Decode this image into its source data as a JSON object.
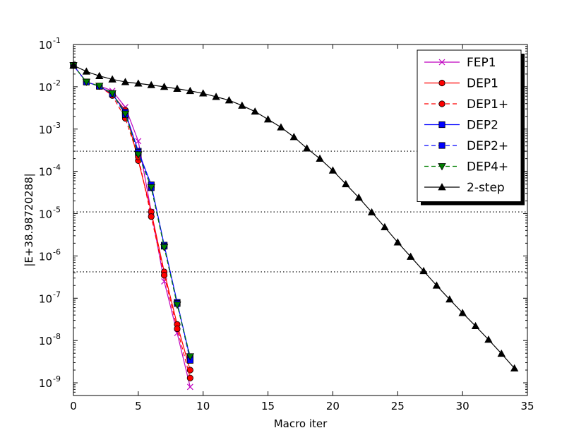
{
  "chart_data": {
    "type": "line",
    "title": "",
    "xlabel": "Macro iter",
    "ylabel": "|E+38.98720288|",
    "yscale": "log",
    "xlim": [
      0,
      35
    ],
    "ylim_exp": [
      -9.3,
      -1
    ],
    "x_ticks": [
      0,
      5,
      10,
      15,
      20,
      25,
      30,
      35
    ],
    "y_ticks": [
      {
        "exp": -1,
        "base": "10",
        "sup": "-1"
      },
      {
        "exp": -2,
        "base": "10",
        "sup": "-2"
      },
      {
        "exp": -3,
        "base": "10",
        "sup": "-3"
      },
      {
        "exp": -4,
        "base": "10",
        "sup": "-4"
      },
      {
        "exp": -5,
        "base": "10",
        "sup": "-5"
      },
      {
        "exp": -6,
        "base": "10",
        "sup": "-6"
      },
      {
        "exp": -7,
        "base": "10",
        "sup": "-7"
      },
      {
        "exp": -8,
        "base": "10",
        "sup": "-8"
      },
      {
        "exp": -9,
        "base": "10",
        "sup": "-9"
      }
    ],
    "reference_lines": [
      0.0003,
      1.1e-05,
      4.2e-07
    ],
    "legend_position": "top-right",
    "series": [
      {
        "name": "FEP1",
        "color": "#bf00bf",
        "dash": "solid",
        "marker": "x",
        "x": [
          0,
          1,
          2,
          3,
          4,
          5,
          6,
          7,
          8,
          9
        ],
        "y": [
          0.032,
          0.013,
          0.0105,
          0.008,
          0.0033,
          0.00052,
          1.1e-05,
          2.5e-07,
          1.5e-08,
          8e-10
        ]
      },
      {
        "name": "DEP1",
        "color": "#ff0000",
        "dash": "solid",
        "marker": "circle",
        "x": [
          0,
          1,
          2,
          3,
          4,
          5,
          6,
          7,
          8,
          9
        ],
        "y": [
          0.032,
          0.013,
          0.0103,
          0.0065,
          0.0028,
          0.00018,
          1.1e-05,
          4.2e-07,
          2.4e-08,
          2e-09
        ]
      },
      {
        "name": "DEP1+",
        "color": "#ff0000",
        "dash": "dashed",
        "marker": "circle",
        "x": [
          0,
          1,
          2,
          3,
          4,
          5,
          6,
          7,
          8,
          9
        ],
        "y": [
          0.032,
          0.013,
          0.0103,
          0.0062,
          0.0018,
          0.00022,
          8.5e-06,
          3.5e-07,
          1.9e-08,
          1.3e-09
        ]
      },
      {
        "name": "DEP2",
        "color": "#0000ff",
        "dash": "solid",
        "marker": "square",
        "x": [
          0,
          1,
          2,
          3,
          4,
          5,
          6,
          7,
          8,
          9
        ],
        "y": [
          0.032,
          0.013,
          0.0103,
          0.0068,
          0.0025,
          0.0003,
          4.8e-05,
          1.8e-06,
          8e-08,
          3.8e-09
        ]
      },
      {
        "name": "DEP2+",
        "color": "#0000ff",
        "dash": "dashed",
        "marker": "square",
        "x": [
          0,
          1,
          2,
          3,
          4,
          5,
          6,
          7,
          8,
          9
        ],
        "y": [
          0.032,
          0.013,
          0.0103,
          0.0068,
          0.0022,
          0.00028,
          4.1e-05,
          1.7e-06,
          7.5e-08,
          3.4e-09
        ]
      },
      {
        "name": "DEP4+",
        "color": "#007f00",
        "dash": "dashed",
        "marker": "triangle-down",
        "x": [
          0,
          1,
          2,
          3,
          4,
          5,
          6,
          7,
          8,
          9
        ],
        "y": [
          0.032,
          0.013,
          0.0105,
          0.007,
          0.0023,
          0.00025,
          4.2e-05,
          1.6e-06,
          7e-08,
          4.2e-09
        ]
      },
      {
        "name": "2-step",
        "color": "#000000",
        "dash": "solid",
        "marker": "triangle-up",
        "x": [
          0,
          1,
          2,
          3,
          4,
          5,
          6,
          7,
          8,
          9,
          10,
          11,
          12,
          13,
          14,
          15,
          16,
          17,
          18,
          19,
          20,
          21,
          22,
          23,
          24,
          25,
          26,
          27,
          28,
          29,
          30,
          31,
          32,
          33,
          34
        ],
        "y": [
          0.032,
          0.023,
          0.018,
          0.015,
          0.013,
          0.012,
          0.011,
          0.01,
          0.009,
          0.008,
          0.007,
          0.0058,
          0.0048,
          0.0036,
          0.0026,
          0.0017,
          0.0011,
          0.00065,
          0.00035,
          0.0002,
          0.000105,
          5e-05,
          2.4e-05,
          1.08e-05,
          4.8e-06,
          2.1e-06,
          9.6e-07,
          4.4e-07,
          2e-07,
          9.4e-08,
          4.5e-08,
          2.2e-08,
          1.05e-08,
          4.9e-09,
          2.2e-09
        ]
      }
    ]
  }
}
